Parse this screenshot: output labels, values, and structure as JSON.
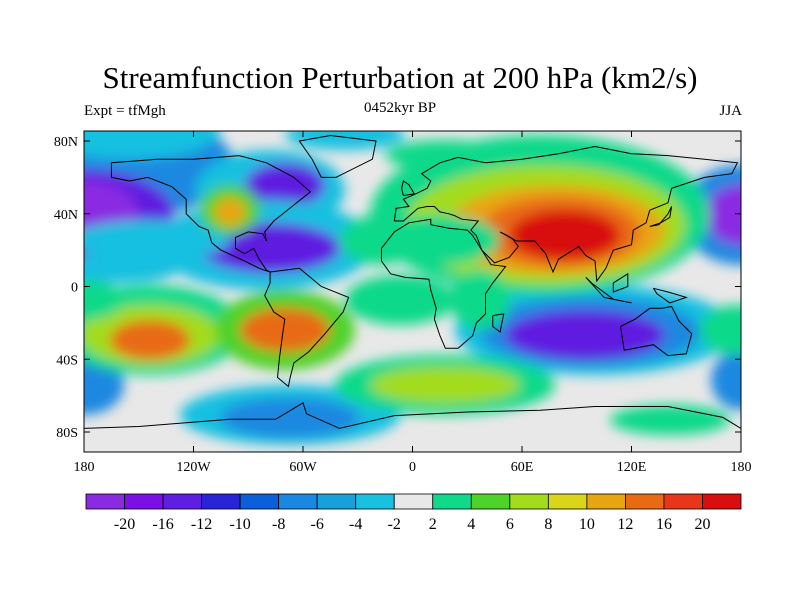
{
  "title": "Streamfunction Perturbation at 200 hPa (km2/s)",
  "left_string": "Expt = tfMgh",
  "center_string": "0452kyr BP",
  "right_string": "JJA",
  "lat_labels": [
    "80N",
    "40N",
    "0",
    "40S",
    "80S"
  ],
  "lon_labels": [
    "180",
    "120W",
    "60W",
    "0",
    "60E",
    "120E",
    "180"
  ],
  "colorbar": {
    "labels": [
      "-20",
      "-16",
      "-12",
      "-10",
      "-8",
      "-6",
      "-4",
      "-2",
      "2",
      "4",
      "6",
      "8",
      "10",
      "12",
      "16",
      "20"
    ],
    "colors": [
      "#8a2be2",
      "#7a10e6",
      "#5f1fe0",
      "#2a24d8",
      "#0b5fd8",
      "#1a88e0",
      "#18a0db",
      "#19c0e0",
      "#e8e8e8",
      "#10d98a",
      "#4fd22a",
      "#a3dc1c",
      "#d9d51a",
      "#e8a512",
      "#e86a12",
      "#e8361a",
      "#d80f0f"
    ]
  },
  "colors": {
    "ocean_neutral": "#e8e8e8",
    "coast": "#000000"
  }
}
